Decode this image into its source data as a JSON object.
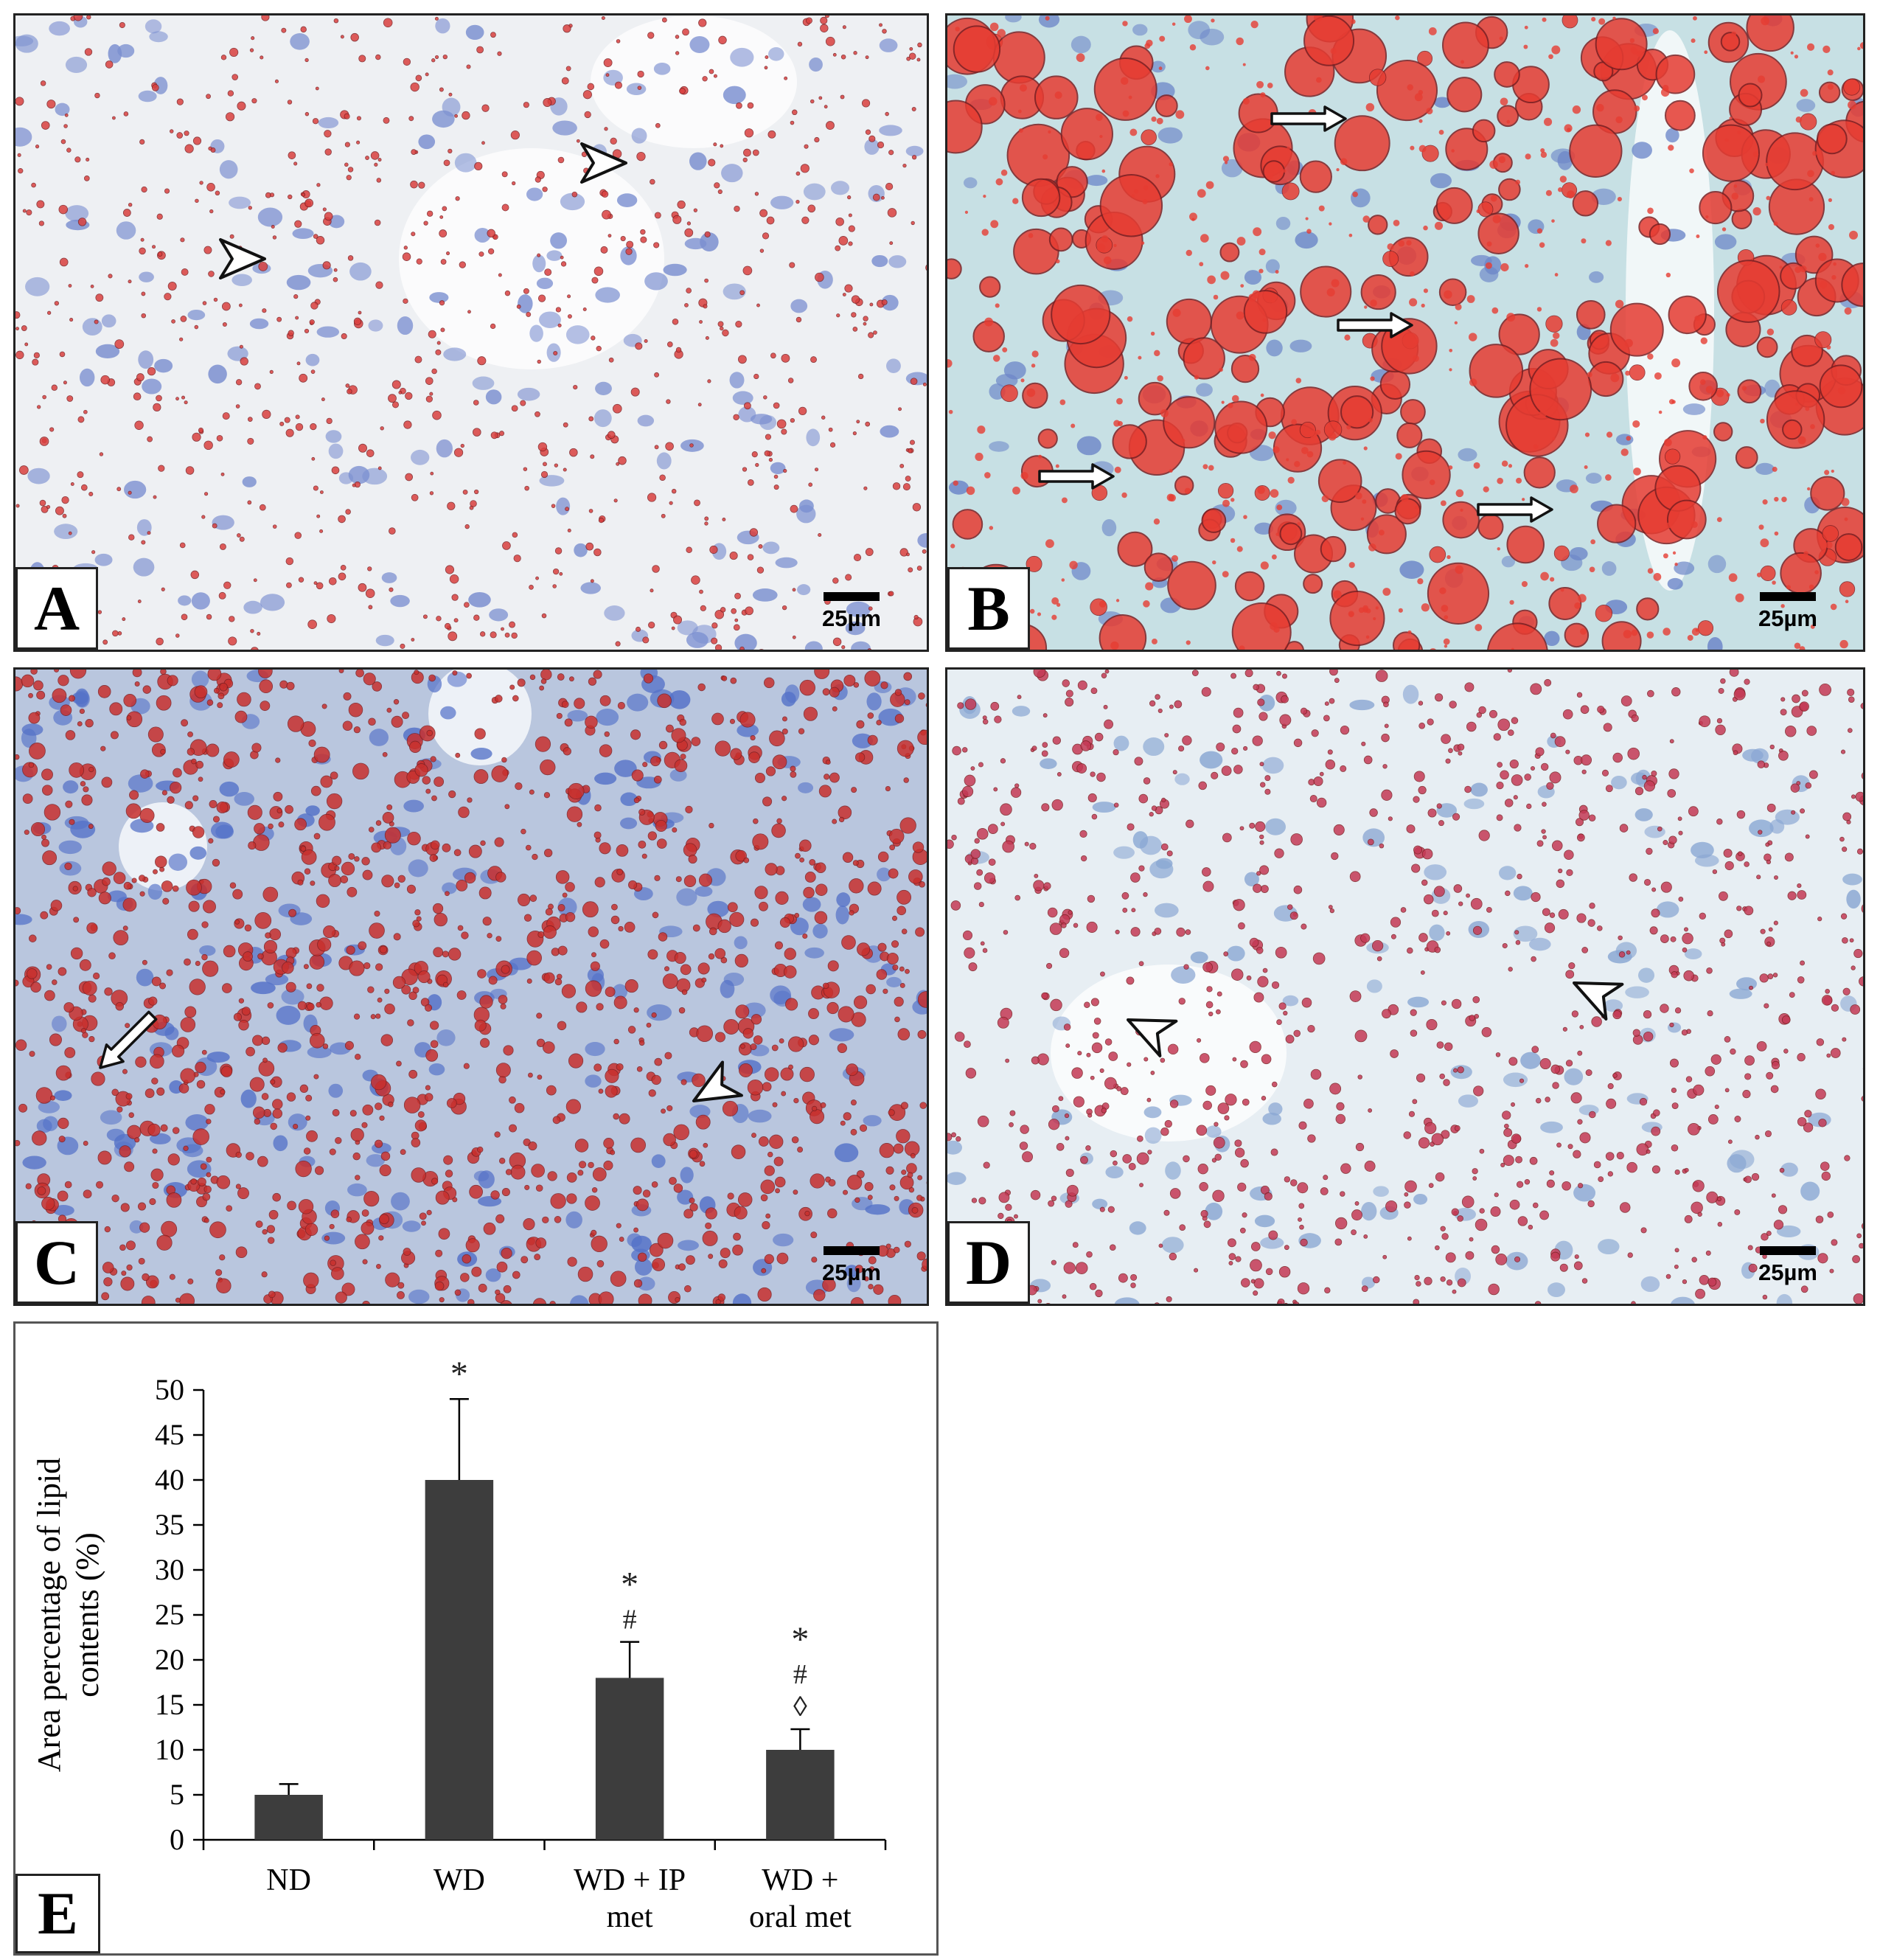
{
  "panels": [
    {
      "letter": "A",
      "scale_label": "25µm",
      "style": "sparse-small-droplets",
      "tissue_color": "#eef0f3",
      "droplet_color": "#d9403f",
      "nucleus_color": "#7b8fd0"
    },
    {
      "letter": "B",
      "scale_label": "25µm",
      "style": "large-droplets",
      "tissue_color": "#c7e0e4",
      "droplet_color": "#e63c32",
      "nucleus_color": "#6c86c8"
    },
    {
      "letter": "C",
      "scale_label": "25µm",
      "style": "dense-mixed",
      "tissue_color": "#b9c6de",
      "droplet_color": "#c8302e",
      "nucleus_color": "#5572c8"
    },
    {
      "letter": "D",
      "scale_label": "25µm",
      "style": "moderate-small-droplets",
      "tissue_color": "#e7eef3",
      "droplet_color": "#c43a55",
      "nucleus_color": "#8aa7d3"
    }
  ],
  "chart_letter": "E",
  "chart_data": {
    "type": "bar",
    "categories": [
      "ND",
      "WD",
      "WD + IP met",
      "WD + oral met"
    ],
    "category_lines": [
      [
        "ND"
      ],
      [
        "WD"
      ],
      [
        "WD + IP",
        "met"
      ],
      [
        "WD +",
        "oral met"
      ]
    ],
    "values": [
      5,
      40,
      18,
      10
    ],
    "errors": [
      1.2,
      9,
      4,
      2.3
    ],
    "annotations": [
      [],
      [
        "*"
      ],
      [
        "*",
        "#"
      ],
      [
        "*",
        "#",
        "◊"
      ]
    ],
    "ylabel_lines": [
      "Area percentage of lipid",
      "contents  (%)"
    ],
    "xlabel": "",
    "title": "",
    "ylim": [
      0,
      50
    ],
    "yticks": [
      0,
      5,
      10,
      15,
      20,
      25,
      30,
      35,
      40,
      45,
      50
    ],
    "bar_color": "#3d3d3d",
    "grid": false
  }
}
